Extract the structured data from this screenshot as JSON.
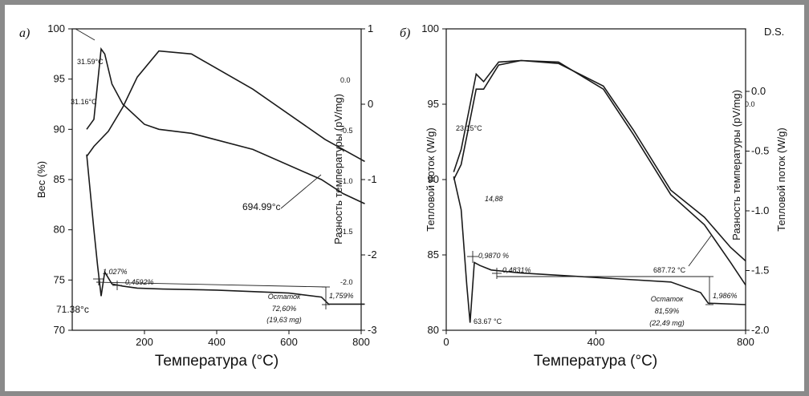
{
  "chart_data": [
    {
      "panel_label": "а)",
      "type": "line",
      "xlabel": "Температура (°C)",
      "ylabel": "Вес (%)",
      "y2label": "Разность температуры (pV/mg)",
      "xlim": [
        0,
        800
      ],
      "ylim": [
        70,
        100
      ],
      "x_ticks": [
        200,
        400,
        600,
        800
      ],
      "y_ticks": [
        70,
        75,
        80,
        85,
        90,
        95,
        100
      ],
      "y2_ticks": [
        "1",
        "0",
        "-1",
        "-2",
        "-3"
      ],
      "y2_small_ticks": [
        "0.0",
        "-0.5",
        "-1.0",
        "-1.5",
        "-2.0"
      ],
      "series": [
        {
          "x": [
            40,
            60,
            80,
            90,
            110,
            140,
            200,
            240,
            330,
            500,
            690,
            750,
            810
          ],
          "values": [
            90.0,
            91.0,
            98.0,
            97.5,
            94.5,
            92.5,
            90.5,
            90.0,
            89.6,
            88.0,
            85.0,
            83.6,
            82.6
          ]
        },
        {
          "x": [
            40,
            60,
            100,
            140,
            180,
            240,
            330,
            500,
            700,
            810
          ],
          "values": [
            87.3,
            88.3,
            89.8,
            92.2,
            95.2,
            97.8,
            97.5,
            94.0,
            89.0,
            86.8
          ]
        },
        {
          "x": [
            40,
            60,
            70,
            80,
            90,
            110,
            140,
            180,
            250,
            400,
            600,
            690,
            710,
            810
          ],
          "values": [
            87.5,
            80.0,
            76.5,
            73.4,
            75.8,
            74.6,
            74.4,
            74.2,
            74.1,
            74.0,
            73.7,
            73.3,
            72.6,
            72.6
          ]
        }
      ],
      "annotations": [
        "31.59°C",
        "31.16°C",
        "1,027%",
        "0,4592%",
        "71.38°c",
        "694.99°c",
        "Остаток",
        "72,60%",
        "(19,63 mg)",
        "1,759%"
      ]
    },
    {
      "panel_label": "б)",
      "corner_label": "D.S.",
      "type": "line",
      "xlabel": "Температура (°C)",
      "ylabel": "Тепловой поток (W/g)",
      "y2label": "Разность температуры (pV/mg)",
      "y3label": "Тепловой поток (W/g)",
      "xlim": [
        0,
        800
      ],
      "ylim": [
        80,
        100
      ],
      "x_ticks": [
        0,
        400,
        800
      ],
      "y_ticks": [
        80,
        85,
        90,
        95,
        100
      ],
      "y3_ticks": [
        "0.0",
        "-0.5",
        "-1.0",
        "-1.5",
        "-2.0"
      ],
      "y2_small_ticks": [
        "0.0"
      ],
      "series": [
        {
          "x": [
            20,
            40,
            60,
            80,
            100,
            140,
            200,
            300,
            420,
            500,
            600,
            690,
            760,
            800
          ],
          "values": [
            90.5,
            92.0,
            94.5,
            97.0,
            96.5,
            97.8,
            97.9,
            97.8,
            96.0,
            93.0,
            89.0,
            87.0,
            84.5,
            83.0
          ]
        },
        {
          "x": [
            20,
            40,
            60,
            80,
            100,
            140,
            200,
            300,
            420,
            500,
            600,
            690,
            760,
            800
          ],
          "values": [
            90.0,
            91.0,
            93.5,
            96.0,
            96.0,
            97.6,
            97.9,
            97.7,
            96.2,
            93.3,
            89.3,
            87.5,
            85.5,
            84.6
          ]
        },
        {
          "x": [
            20,
            40,
            55,
            63.67,
            75,
            90,
            120,
            200,
            400,
            600,
            680,
            700,
            800
          ],
          "values": [
            90.2,
            88.0,
            83.0,
            80.5,
            84.5,
            84.3,
            84.0,
            83.8,
            83.5,
            83.2,
            82.5,
            81.8,
            81.7
          ]
        }
      ],
      "annotations": [
        "23.15°C",
        "14,88",
        "0,9870 %",
        "0,4831%",
        "687.72 °C",
        "Остаток",
        "81,59%",
        "(22,49 mg)",
        "1,986%",
        "63.67 °C"
      ]
    }
  ]
}
